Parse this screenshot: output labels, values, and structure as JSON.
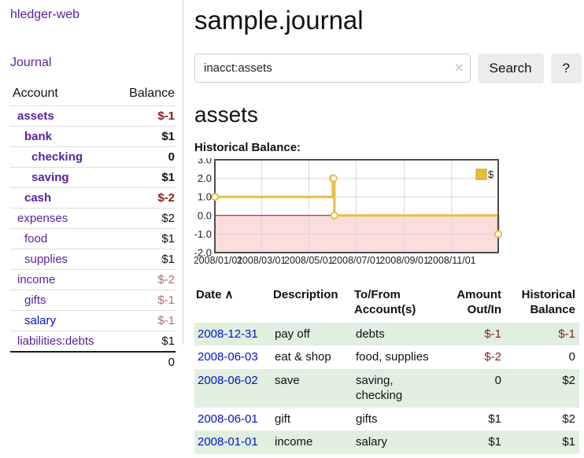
{
  "app": {
    "brand": "hledger-web"
  },
  "sidebar": {
    "journal_link": "Journal",
    "accounts_header": {
      "account": "Account",
      "balance": "Balance"
    },
    "accounts": [
      {
        "name": "assets",
        "depth": 1,
        "bold": true,
        "link_color": "purple",
        "balance": "$-1",
        "balance_class": "neg"
      },
      {
        "name": "bank",
        "depth": 2,
        "bold": true,
        "link_color": "purple",
        "balance": "$1",
        "balance_class": ""
      },
      {
        "name": "checking",
        "depth": 3,
        "bold": true,
        "link_color": "purple",
        "balance": "0",
        "balance_class": ""
      },
      {
        "name": "saving",
        "depth": 3,
        "bold": true,
        "link_color": "purple",
        "balance": "$1",
        "balance_class": ""
      },
      {
        "name": "cash",
        "depth": 2,
        "bold": true,
        "link_color": "purple",
        "balance": "$-2",
        "balance_class": "neg"
      },
      {
        "name": "expenses",
        "depth": 1,
        "bold": false,
        "link_color": "purple",
        "balance": "$2",
        "balance_class": ""
      },
      {
        "name": "food",
        "depth": 2,
        "bold": false,
        "link_color": "purple",
        "balance": "$1",
        "balance_class": ""
      },
      {
        "name": "supplies",
        "depth": 2,
        "bold": false,
        "link_color": "purple",
        "balance": "$1",
        "balance_class": ""
      },
      {
        "name": "income",
        "depth": 1,
        "bold": false,
        "link_color": "purple",
        "balance": "$-2",
        "balance_class": "neg-soft"
      },
      {
        "name": "gifts",
        "depth": 2,
        "bold": false,
        "link_color": "purple",
        "balance": "$-1",
        "balance_class": "neg-soft"
      },
      {
        "name": "salary",
        "depth": 2,
        "bold": false,
        "link_color": "blue",
        "balance": "$-1",
        "balance_class": "neg-soft"
      },
      {
        "name": "liabilities:debts",
        "depth": 1,
        "bold": false,
        "link_color": "purple",
        "balance": "$1",
        "balance_class": ""
      }
    ],
    "total": "0"
  },
  "header": {
    "title": "sample.journal"
  },
  "search": {
    "value": "inacct:assets",
    "clear_icon": "×",
    "button_label": "Search",
    "help_label": "?"
  },
  "account_page": {
    "title": "assets",
    "chart_label": "Historical Balance:"
  },
  "chart_data": {
    "type": "line",
    "title": "Historical Balance:",
    "step": true,
    "legend": "$",
    "legend_position": "top-right",
    "ylim": [
      -2,
      3
    ],
    "yticks": [
      "3.0",
      "2.0",
      "1.0",
      "0.0",
      "-1.0",
      "-2.0"
    ],
    "ytick_values": [
      3,
      2,
      1,
      0,
      -1,
      -2
    ],
    "x_range": [
      "2008-01-01",
      "2008-12-31"
    ],
    "xticks": [
      "2008/01/01",
      "2008/03/01",
      "2008/05/01",
      "2008/07/01",
      "2008/09/01",
      "2008/11/01"
    ],
    "negative_region_shaded": true,
    "grid": true,
    "series": [
      {
        "name": "$",
        "points": [
          {
            "date": "2008-01-01",
            "value": 1
          },
          {
            "date": "2008-06-01",
            "value": 2
          },
          {
            "date": "2008-06-02",
            "value": 2
          },
          {
            "date": "2008-06-03",
            "value": 0
          },
          {
            "date": "2008-12-31",
            "value": -1
          }
        ]
      }
    ]
  },
  "table": {
    "headers": {
      "date": "Date",
      "sort_indicator": "∧",
      "description": "Description",
      "accounts": "To/From\nAccount(s)",
      "amount": "Amount\nOut/In",
      "balance": "Historical\nBalance"
    },
    "rows": [
      {
        "date": "2008-12-31",
        "description": "pay off",
        "accounts": "debts",
        "amount": "$-1",
        "amount_class": "neg",
        "balance": "$-1",
        "balance_class": "neg"
      },
      {
        "date": "2008-06-03",
        "description": "eat & shop",
        "accounts": "food, supplies",
        "amount": "$-2",
        "amount_class": "neg",
        "balance": "0",
        "balance_class": ""
      },
      {
        "date": "2008-06-02",
        "description": "save",
        "accounts": "saving, checking",
        "amount": "0",
        "amount_class": "",
        "balance": "$2",
        "balance_class": ""
      },
      {
        "date": "2008-06-01",
        "description": "gift",
        "accounts": "gifts",
        "amount": "$1",
        "amount_class": "",
        "balance": "$2",
        "balance_class": ""
      },
      {
        "date": "2008-01-01",
        "description": "income",
        "accounts": "salary",
        "amount": "$1",
        "amount_class": "",
        "balance": "$1",
        "balance_class": ""
      }
    ]
  },
  "colors": {
    "link_purple": "#5c21a0",
    "link_blue": "#0013cc",
    "negative_strong": "#8b1c1c",
    "negative_soft": "#b56a6a",
    "row_stripe_green": "#e0efe0",
    "chart_line_gold": "#e6bf46",
    "chart_negative_pink": "#fadcdc",
    "chart_zero_line_red": "#9e0b0b",
    "button_gray": "#ececec"
  }
}
